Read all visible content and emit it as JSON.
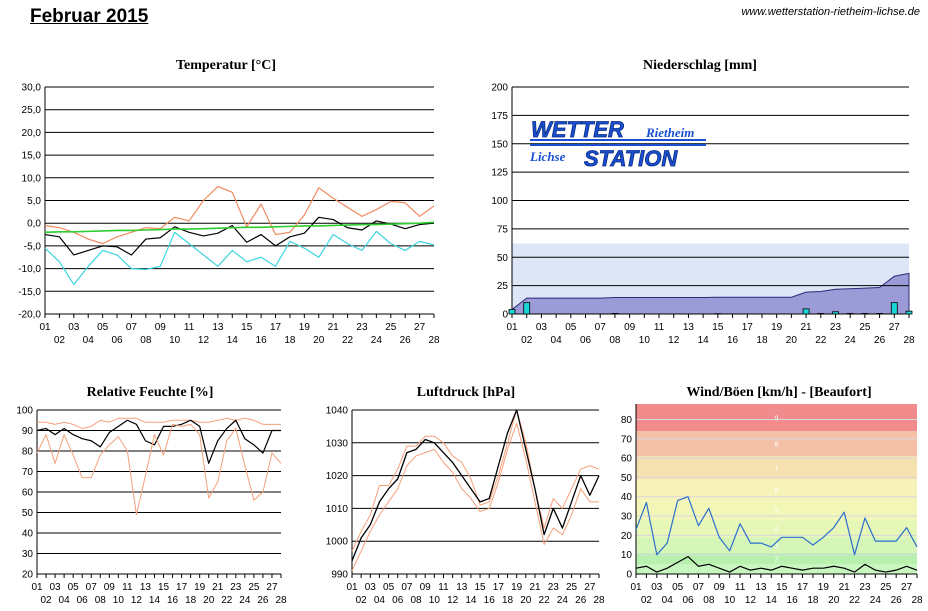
{
  "page": {
    "title": "Februar 2015",
    "url": "www.wetterstation-rietheim-lichse.de"
  },
  "logo": {
    "word1": "WETTER",
    "word2": "Rietheim",
    "word3": "Lichse",
    "word4": "STATION"
  },
  "colors": {
    "max": "#f08a5e",
    "min": "#3dd5e0",
    "avg": "#000000",
    "trend": "#2ecc2e",
    "precip_area": "#9b9bd8",
    "precip_bar": "#19d7d7",
    "humid_band": "#f5a07a",
    "wind_line": "#2a6fcf",
    "wind_avg": "#000000"
  },
  "chart_data": [
    {
      "id": "temp",
      "type": "line",
      "title": "Temperatur [°C]",
      "ylim": [
        -20,
        30
      ],
      "yticks": [
        -20,
        -15,
        -10,
        -5,
        0,
        5,
        10,
        15,
        20,
        25,
        30
      ],
      "ytick_labels": [
        "-20,0",
        "-15,0",
        "-10,0",
        "-5,0",
        "0,0",
        "5,0",
        "10,0",
        "15,0",
        "20,0",
        "25,0",
        "30,0"
      ],
      "x": [
        1,
        2,
        3,
        4,
        5,
        6,
        7,
        8,
        9,
        10,
        11,
        12,
        13,
        14,
        15,
        16,
        17,
        18,
        19,
        20,
        21,
        22,
        23,
        24,
        25,
        26,
        27,
        28
      ],
      "xtick_labels": [
        "01",
        "02",
        "03",
        "04",
        "05",
        "06",
        "07",
        "08",
        "09",
        "10",
        "11",
        "12",
        "13",
        "14",
        "15",
        "16",
        "17",
        "18",
        "19",
        "20",
        "21",
        "22",
        "23",
        "24",
        "25",
        "26",
        "27",
        "28"
      ],
      "series": [
        {
          "key": "max",
          "values": [
            -0.5,
            -1.0,
            -2.0,
            -3.5,
            -4.5,
            -3.0,
            -2.0,
            -1.0,
            -1.2,
            1.3,
            0.5,
            5.0,
            8.1,
            6.8,
            -0.8,
            4.2,
            -2.5,
            -2.0,
            1.8,
            7.8,
            5.5,
            3.5,
            1.5,
            3.0,
            4.8,
            4.5,
            1.5,
            3.8
          ]
        },
        {
          "key": "avg",
          "values": [
            -2.5,
            -3.0,
            -7.0,
            -6.0,
            -5.0,
            -5.2,
            -7.0,
            -3.5,
            -3.2,
            -0.8,
            -2.0,
            -2.8,
            -2.2,
            -0.5,
            -4.2,
            -2.5,
            -5.0,
            -3.0,
            -2.2,
            1.3,
            0.8,
            -1.0,
            -1.5,
            0.5,
            -0.2,
            -1.2,
            -0.3,
            0.0
          ]
        },
        {
          "key": "min",
          "values": [
            -5.5,
            -8.5,
            -13.5,
            -9.5,
            -6.0,
            -7.0,
            -10.0,
            -10.2,
            -9.5,
            -2.0,
            -4.5,
            -7.0,
            -9.5,
            -6.0,
            -8.5,
            -7.5,
            -9.5,
            -4.0,
            -5.5,
            -7.5,
            -2.5,
            -4.5,
            -6.0,
            -1.8,
            -4.5,
            -6.0,
            -4.0,
            -4.8
          ]
        },
        {
          "key": "trend",
          "values": [
            -2.0,
            -1.9,
            -1.9,
            -1.8,
            -1.7,
            -1.6,
            -1.6,
            -1.5,
            -1.4,
            -1.3,
            -1.3,
            -1.2,
            -1.1,
            -1.0,
            -0.9,
            -0.9,
            -0.8,
            -0.7,
            -0.6,
            -0.6,
            -0.5,
            -0.4,
            -0.3,
            -0.3,
            -0.2,
            -0.1,
            0.0,
            0.2
          ]
        }
      ]
    },
    {
      "id": "precip",
      "type": "bar",
      "title": "Niederschlag [mm]",
      "ylim": [
        0,
        200
      ],
      "yticks": [
        0,
        25,
        50,
        75,
        100,
        125,
        150,
        175,
        200
      ],
      "x": [
        1,
        2,
        3,
        4,
        5,
        6,
        7,
        8,
        9,
        10,
        11,
        12,
        13,
        14,
        15,
        16,
        17,
        18,
        19,
        20,
        21,
        22,
        23,
        24,
        25,
        26,
        27,
        28
      ],
      "xtick_labels": [
        "01",
        "02",
        "03",
        "04",
        "05",
        "06",
        "07",
        "08",
        "09",
        "10",
        "11",
        "12",
        "13",
        "14",
        "15",
        "16",
        "17",
        "18",
        "19",
        "20",
        "21",
        "22",
        "23",
        "24",
        "25",
        "26",
        "27",
        "28"
      ],
      "band_max": 62,
      "daily": [
        4.0,
        10.0,
        0,
        0,
        0,
        0,
        0,
        0.5,
        0,
        0,
        0,
        0,
        0,
        0,
        0.3,
        0,
        0,
        0,
        0,
        0,
        4.5,
        0.5,
        2.0,
        0.5,
        0.5,
        0.5,
        10.0,
        2.5
      ],
      "cumulative": [
        4.0,
        14.0,
        14.0,
        14.0,
        14.0,
        14.0,
        14.0,
        14.5,
        14.5,
        14.5,
        14.5,
        14.5,
        14.5,
        14.5,
        14.8,
        14.8,
        14.8,
        14.8,
        14.8,
        14.8,
        19.3,
        19.8,
        21.8,
        22.3,
        22.8,
        23.3,
        33.3,
        35.8
      ]
    },
    {
      "id": "humid",
      "type": "line",
      "title": "Relative Feuchte [%]",
      "ylim": [
        20,
        100
      ],
      "yticks": [
        20,
        30,
        40,
        50,
        60,
        70,
        80,
        90,
        100
      ],
      "x": [
        1,
        2,
        3,
        4,
        5,
        6,
        7,
        8,
        9,
        10,
        11,
        12,
        13,
        14,
        15,
        16,
        17,
        18,
        19,
        20,
        21,
        22,
        23,
        24,
        25,
        26,
        27,
        28
      ],
      "xtick_labels": [
        "01",
        "02",
        "03",
        "04",
        "05",
        "06",
        "07",
        "08",
        "09",
        "10",
        "11",
        "12",
        "13",
        "14",
        "15",
        "16",
        "17",
        "18",
        "19",
        "20",
        "21",
        "22",
        "23",
        "24",
        "25",
        "26",
        "27",
        "28"
      ],
      "series": [
        {
          "key": "upper",
          "values": [
            94,
            94,
            93,
            94,
            93,
            91,
            92,
            95,
            94,
            96,
            96,
            96,
            94,
            94,
            94,
            95,
            95,
            95,
            94,
            94,
            95,
            96,
            95,
            96,
            95,
            93,
            93,
            93
          ]
        },
        {
          "key": "avg",
          "values": [
            90,
            91,
            88,
            91,
            88,
            86,
            85,
            82,
            89,
            92,
            95,
            93,
            85,
            83,
            92,
            92,
            93,
            95,
            92,
            74,
            85,
            91,
            95,
            86,
            83,
            79,
            90,
            90
          ]
        },
        {
          "key": "lower",
          "values": [
            79,
            88,
            74,
            88,
            78,
            67,
            67,
            78,
            83,
            87,
            80,
            49,
            68,
            88,
            78,
            93,
            92,
            93,
            88,
            57,
            65,
            85,
            91,
            73,
            56,
            60,
            79,
            74
          ]
        }
      ]
    },
    {
      "id": "press",
      "type": "line",
      "title": "Luftdruck [hPa]",
      "ylim": [
        990,
        1040
      ],
      "yticks": [
        990,
        1000,
        1010,
        1020,
        1030,
        1040
      ],
      "x": [
        1,
        2,
        3,
        4,
        5,
        6,
        7,
        8,
        9,
        10,
        11,
        12,
        13,
        14,
        15,
        16,
        17,
        18,
        19,
        20,
        21,
        22,
        23,
        24,
        25,
        26,
        27,
        28
      ],
      "xtick_labels": [
        "01",
        "02",
        "03",
        "04",
        "05",
        "06",
        "07",
        "08",
        "09",
        "10",
        "11",
        "12",
        "13",
        "14",
        "15",
        "16",
        "17",
        "18",
        "19",
        "20",
        "21",
        "22",
        "23",
        "24",
        "25",
        "26",
        "27",
        "28"
      ],
      "series": [
        {
          "key": "upper",
          "values": [
            997,
            1003,
            1008,
            1017,
            1017,
            1022,
            1029,
            1029,
            1032,
            1032,
            1030,
            1026,
            1024,
            1019,
            1011,
            1012,
            1020,
            1030,
            1040,
            1030,
            1016,
            1004,
            1013,
            1010,
            1016,
            1022,
            1023,
            1022
          ]
        },
        {
          "key": "avg",
          "values": [
            994,
            1001,
            1005,
            1012,
            1016,
            1019,
            1027,
            1028,
            1031,
            1030,
            1027,
            1024,
            1020,
            1016,
            1012,
            1013,
            1023,
            1033,
            1040,
            1028,
            1016,
            1002,
            1010,
            1004,
            1012,
            1020,
            1014,
            1020
          ]
        },
        {
          "key": "lower",
          "values": [
            991,
            997,
            1003,
            1008,
            1012,
            1016,
            1023,
            1026,
            1027,
            1028,
            1024,
            1021,
            1016,
            1013,
            1009,
            1010,
            1018,
            1028,
            1036,
            1025,
            1012,
            999,
            1004,
            1002,
            1008,
            1016,
            1012,
            1012
          ]
        }
      ]
    },
    {
      "id": "wind",
      "type": "line",
      "title": "Wind/Böen [km/h] - [Beaufort]",
      "ylim": [
        0,
        88
      ],
      "yticks": [
        0,
        10,
        20,
        30,
        40,
        50,
        60,
        70,
        80
      ],
      "beaufort": [
        {
          "label": "1",
          "lo": 0,
          "hi": 5,
          "color": "#c9f7c0"
        },
        {
          "label": "2",
          "lo": 5,
          "hi": 11,
          "color": "#b8f1ae"
        },
        {
          "label": "3",
          "lo": 11,
          "hi": 19,
          "color": "#d6f5b8"
        },
        {
          "label": "4",
          "lo": 19,
          "hi": 28,
          "color": "#e6f7b8"
        },
        {
          "label": "5",
          "lo": 28,
          "hi": 38,
          "color": "#f2f7b8"
        },
        {
          "label": "6",
          "lo": 38,
          "hi": 49,
          "color": "#f7f3b8"
        },
        {
          "label": "7",
          "lo": 49,
          "hi": 61,
          "color": "#f5e1b0"
        },
        {
          "label": "8",
          "lo": 61,
          "hi": 74,
          "color": "#f5c0a8"
        },
        {
          "label": "9",
          "lo": 74,
          "hi": 88,
          "color": "#f28b8b"
        }
      ],
      "x": [
        1,
        2,
        3,
        4,
        5,
        6,
        7,
        8,
        9,
        10,
        11,
        12,
        13,
        14,
        15,
        16,
        17,
        18,
        19,
        20,
        21,
        22,
        23,
        24,
        25,
        26,
        27,
        28
      ],
      "xtick_labels": [
        "01",
        "02",
        "03",
        "04",
        "05",
        "06",
        "07",
        "08",
        "09",
        "10",
        "11",
        "12",
        "13",
        "14",
        "15",
        "16",
        "17",
        "18",
        "19",
        "20",
        "21",
        "22",
        "23",
        "24",
        "25",
        "26",
        "27",
        "28"
      ],
      "series": [
        {
          "key": "gust",
          "values": [
            23,
            37,
            10,
            16,
            38,
            40,
            25,
            34,
            19,
            12,
            26,
            16,
            16,
            14,
            19,
            19,
            19,
            15,
            19,
            24,
            32,
            10,
            29,
            17,
            17,
            17,
            24,
            14
          ]
        },
        {
          "key": "avgwind",
          "values": [
            3,
            4,
            1,
            3,
            6,
            9,
            4,
            5,
            3,
            1,
            4,
            2,
            3,
            2,
            4,
            3,
            2,
            3,
            3,
            4,
            3,
            1,
            5,
            2,
            1,
            2,
            4,
            2
          ]
        }
      ]
    }
  ]
}
